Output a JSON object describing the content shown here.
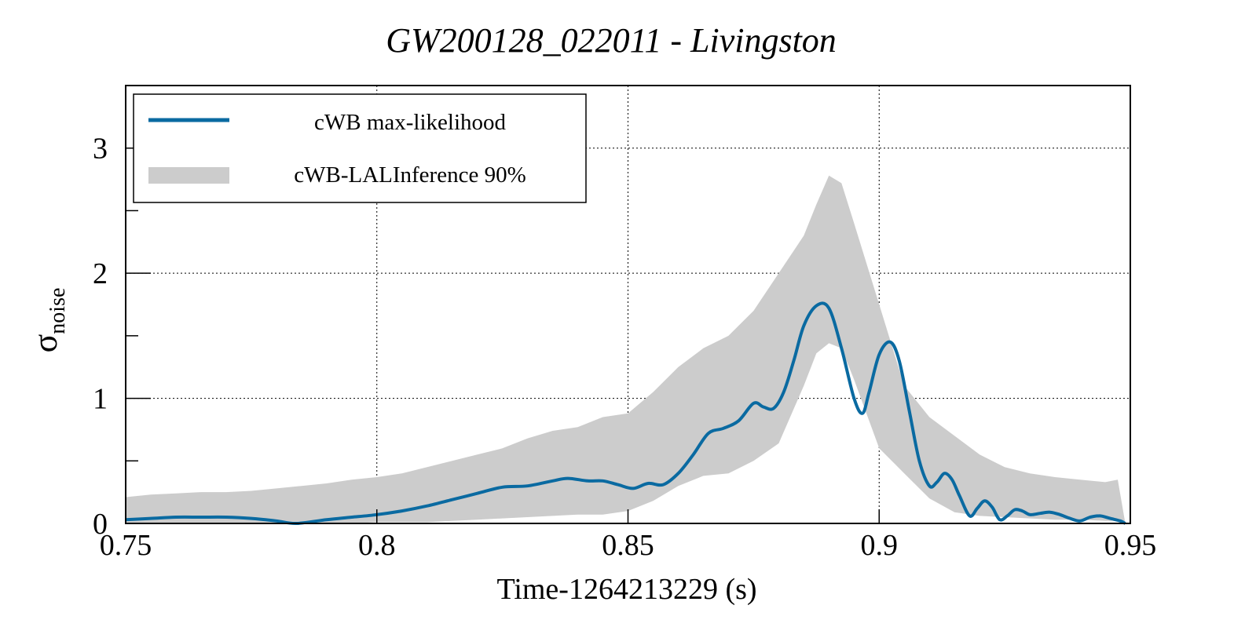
{
  "chart_data": {
    "type": "line",
    "title": "GW200128_022011 - Livingston",
    "xlabel": "Time-1264213229 (s)",
    "ylabel_main": "σ",
    "ylabel_sub": "noise",
    "xlim": [
      0.75,
      0.95
    ],
    "ylim": [
      0,
      3.5
    ],
    "x_ticks": [
      0.75,
      0.8,
      0.85,
      0.9,
      0.95
    ],
    "x_tick_labels": [
      "0.75",
      "0.8",
      "0.85",
      "0.9",
      "0.95"
    ],
    "y_ticks": [
      0,
      1,
      2,
      3
    ],
    "y_tick_labels": [
      "0",
      "1",
      "2",
      "3"
    ],
    "y_minor_ticks": [
      0.5,
      1.5,
      2.5
    ],
    "grid": true,
    "legend": {
      "placement": "top-left",
      "entries": [
        {
          "label": "cWB max-likelihood",
          "kind": "line",
          "color": "#0a6aa1"
        },
        {
          "label": "cWB-LALInference 90%",
          "kind": "band",
          "color": "#cccccc"
        }
      ]
    },
    "series": [
      {
        "name": "cWB max-likelihood",
        "color": "#0a6aa1",
        "x": [
          0.75,
          0.755,
          0.76,
          0.765,
          0.77,
          0.775,
          0.78,
          0.784,
          0.79,
          0.795,
          0.8,
          0.805,
          0.81,
          0.815,
          0.82,
          0.825,
          0.83,
          0.835,
          0.838,
          0.842,
          0.845,
          0.848,
          0.851,
          0.854,
          0.857,
          0.86,
          0.863,
          0.866,
          0.869,
          0.872,
          0.875,
          0.877,
          0.879,
          0.881,
          0.883,
          0.885,
          0.8875,
          0.89,
          0.8925,
          0.895,
          0.8967,
          0.898,
          0.9,
          0.9022,
          0.904,
          0.906,
          0.908,
          0.91,
          0.9115,
          0.913,
          0.9145,
          0.916,
          0.918,
          0.9195,
          0.921,
          0.9225,
          0.924,
          0.9255,
          0.927,
          0.9285,
          0.93,
          0.932,
          0.934,
          0.936,
          0.938,
          0.94,
          0.942,
          0.944,
          0.946,
          0.948,
          0.949
        ],
        "y": [
          0.03,
          0.04,
          0.05,
          0.05,
          0.05,
          0.04,
          0.02,
          0.0,
          0.03,
          0.05,
          0.07,
          0.1,
          0.14,
          0.19,
          0.24,
          0.29,
          0.3,
          0.34,
          0.36,
          0.34,
          0.34,
          0.31,
          0.28,
          0.32,
          0.31,
          0.4,
          0.55,
          0.72,
          0.76,
          0.82,
          0.96,
          0.93,
          0.92,
          1.05,
          1.3,
          1.58,
          1.74,
          1.72,
          1.4,
          1.0,
          0.88,
          1.05,
          1.35,
          1.45,
          1.3,
          0.9,
          0.5,
          0.3,
          0.33,
          0.4,
          0.35,
          0.22,
          0.06,
          0.12,
          0.18,
          0.13,
          0.03,
          0.06,
          0.11,
          0.1,
          0.07,
          0.08,
          0.09,
          0.07,
          0.04,
          0.02,
          0.05,
          0.06,
          0.04,
          0.02,
          0.0
        ]
      },
      {
        "name": "cWB-LALInference 90%",
        "kind": "band",
        "color": "#cccccc",
        "x": [
          0.75,
          0.755,
          0.76,
          0.765,
          0.77,
          0.775,
          0.78,
          0.785,
          0.79,
          0.795,
          0.8,
          0.805,
          0.81,
          0.815,
          0.82,
          0.825,
          0.83,
          0.835,
          0.84,
          0.845,
          0.85,
          0.855,
          0.86,
          0.865,
          0.87,
          0.875,
          0.88,
          0.885,
          0.8875,
          0.89,
          0.8925,
          0.895,
          0.9,
          0.905,
          0.91,
          0.915,
          0.92,
          0.925,
          0.93,
          0.935,
          0.94,
          0.945,
          0.9475,
          0.949
        ],
        "lower": [
          0.0,
          0.0,
          0.0,
          0.0,
          0.0,
          0.0,
          0.0,
          0.0,
          0.0,
          0.0,
          0.01,
          0.01,
          0.01,
          0.02,
          0.03,
          0.04,
          0.05,
          0.06,
          0.07,
          0.07,
          0.1,
          0.18,
          0.3,
          0.38,
          0.4,
          0.5,
          0.64,
          1.1,
          1.36,
          1.44,
          1.4,
          1.15,
          0.6,
          0.4,
          0.2,
          0.09,
          0.06,
          0.05,
          0.04,
          0.03,
          0.03,
          0.02,
          0.02,
          0.0
        ],
        "upper": [
          0.21,
          0.23,
          0.24,
          0.25,
          0.25,
          0.26,
          0.28,
          0.3,
          0.32,
          0.35,
          0.37,
          0.4,
          0.45,
          0.5,
          0.55,
          0.6,
          0.68,
          0.74,
          0.77,
          0.85,
          0.88,
          1.05,
          1.25,
          1.4,
          1.5,
          1.7,
          2.0,
          2.3,
          2.55,
          2.78,
          2.72,
          2.4,
          1.75,
          1.1,
          0.85,
          0.7,
          0.55,
          0.45,
          0.4,
          0.37,
          0.35,
          0.33,
          0.35,
          0.0
        ]
      }
    ]
  }
}
